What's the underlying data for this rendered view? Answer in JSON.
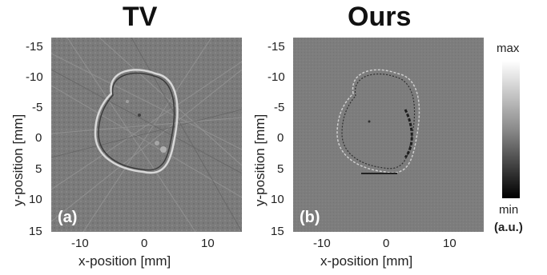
{
  "figure": {
    "panels": [
      {
        "title": "TV",
        "tag": "(a)"
      },
      {
        "title": "Ours",
        "tag": "(b)"
      }
    ],
    "axes": {
      "y_label": "y-position [mm]",
      "x_label": "x-position [mm]",
      "y_ticks": [
        "-15",
        "-10",
        "-5",
        "0",
        "5",
        "10",
        "15"
      ],
      "x_ticks": [
        "-10",
        "0",
        "10"
      ]
    },
    "colorbar": {
      "max_label": "max",
      "min_label": "min",
      "unit_label": "(a.u.)"
    }
  }
}
